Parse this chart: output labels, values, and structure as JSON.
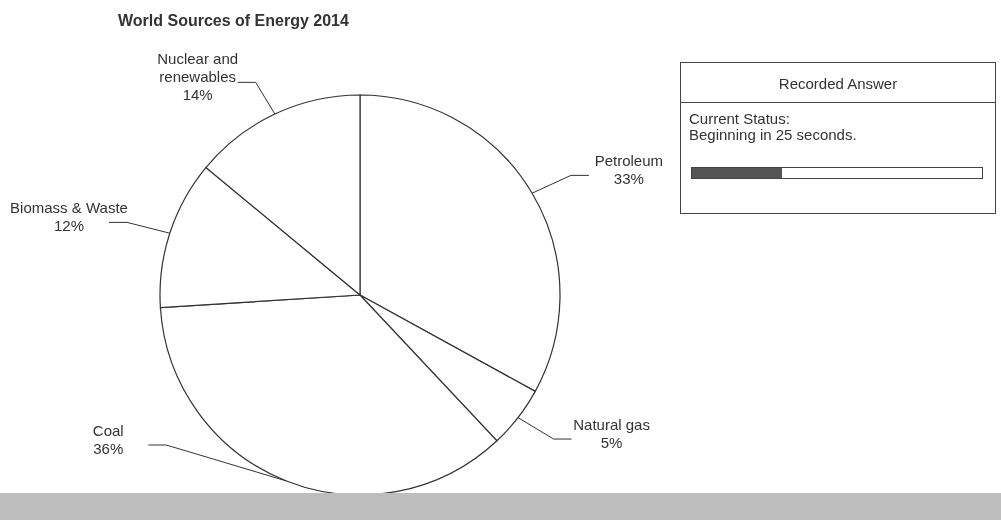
{
  "chart_data": {
    "type": "pie",
    "title": "World Sources of Energy 2014",
    "categories": [
      "Petroleum",
      "Natural gas",
      "Coal",
      "Biomass & Waste",
      "Nuclear and renewables"
    ],
    "values": [
      33,
      5,
      36,
      12,
      14
    ],
    "value_labels": [
      "33%",
      "5%",
      "36%",
      "12%",
      "14%"
    ],
    "colors": [
      "#ffffff",
      "#ffffff",
      "#ffffff",
      "#ffffff",
      "#ffffff"
    ],
    "annotations": [
      "Recorded Answer",
      "Current Status:",
      "Beginning in 25 seconds."
    ]
  }
}
